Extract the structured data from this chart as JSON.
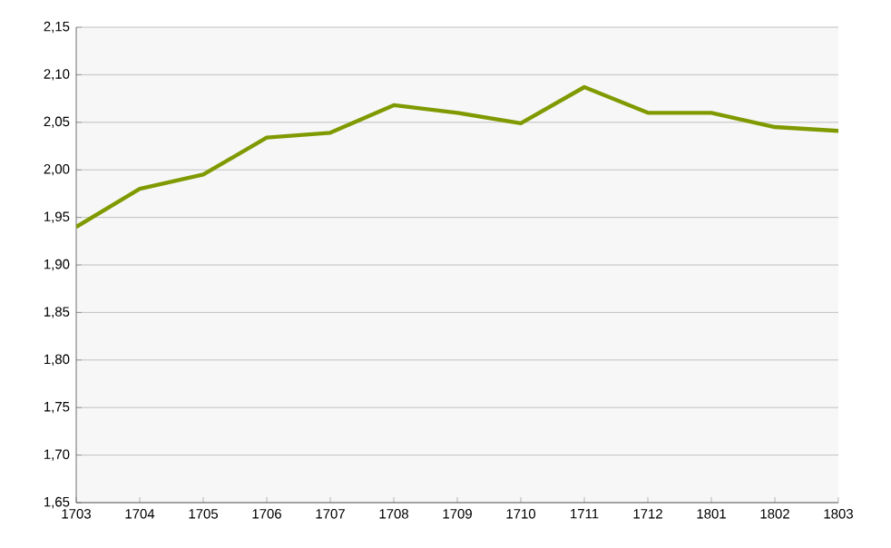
{
  "chart_data": {
    "type": "line",
    "categories": [
      "1703",
      "1704",
      "1705",
      "1706",
      "1707",
      "1708",
      "1709",
      "1710",
      "1711",
      "1712",
      "1801",
      "1802",
      "1803"
    ],
    "values": [
      1.94,
      1.98,
      1.995,
      2.034,
      2.039,
      2.068,
      2.06,
      2.049,
      2.087,
      2.06,
      2.06,
      2.045,
      2.041
    ],
    "color": "#7f9a00",
    "ylim": [
      1.65,
      2.15
    ],
    "yticks": [
      {
        "value": 1.65,
        "label": "1,65"
      },
      {
        "value": 1.7,
        "label": "1,70"
      },
      {
        "value": 1.75,
        "label": "1,75"
      },
      {
        "value": 1.8,
        "label": "1,80"
      },
      {
        "value": 1.85,
        "label": "1,85"
      },
      {
        "value": 1.9,
        "label": "1,90"
      },
      {
        "value": 1.95,
        "label": "1,95"
      },
      {
        "value": 2.0,
        "label": "2,00"
      },
      {
        "value": 2.05,
        "label": "2,05"
      },
      {
        "value": 2.1,
        "label": "2,10"
      },
      {
        "value": 2.15,
        "label": "2,15"
      }
    ],
    "grid": "y",
    "marker": "none",
    "line_style": "solid"
  }
}
